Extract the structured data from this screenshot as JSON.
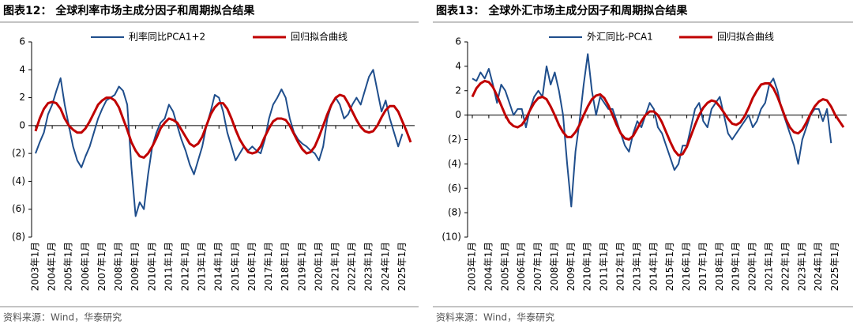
{
  "chart_data": [
    {
      "type": "line",
      "title": "图表12：  全球利率市场主成分因子和周期拟合结果",
      "source": "资料来源：Wind，华泰研究",
      "categories": [
        "2003年1月",
        null,
        null,
        null,
        "2004年1月",
        null,
        null,
        null,
        "2005年1月",
        null,
        null,
        null,
        "2006年1月",
        null,
        null,
        null,
        "2007年1月",
        null,
        null,
        null,
        "2008年1月",
        null,
        null,
        null,
        "2009年1月",
        null,
        null,
        null,
        "2010年1月",
        null,
        null,
        null,
        "2011年1月",
        null,
        null,
        null,
        "2012年1月",
        null,
        null,
        null,
        "2013年1月",
        null,
        null,
        null,
        "2014年1月",
        null,
        null,
        null,
        "2015年1月",
        null,
        null,
        null,
        "2016年1月",
        null,
        null,
        null,
        "2017年1月",
        null,
        null,
        null,
        "2018年1月",
        null,
        null,
        null,
        "2019年1月",
        null,
        null,
        null,
        "2020年1月",
        null,
        null,
        null,
        "2021年1月",
        null,
        null,
        null,
        "2022年1月",
        null,
        null,
        null,
        "2023年1月",
        null,
        null,
        null,
        "2024年1月",
        null,
        null,
        null,
        "2025年1月",
        null,
        null
      ],
      "ylim": [
        -8,
        6
      ],
      "yticks": [
        {
          "value": -8,
          "label": "(8)"
        },
        {
          "value": -6,
          "label": "(6)"
        },
        {
          "value": -4,
          "label": "(4)"
        },
        {
          "value": -2,
          "label": "(2)"
        },
        0,
        2,
        4,
        6
      ],
      "series": [
        {
          "name": "利率同比PCA1+2",
          "color": "#1f4e8c",
          "width": 2,
          "values": [
            -2,
            -1.2,
            -0.5,
            0.8,
            1.5,
            2.5,
            3.4,
            1.5,
            0,
            -1.5,
            -2.5,
            -3,
            -2.2,
            -1.5,
            -0.5,
            0.5,
            1.2,
            1.8,
            2,
            2.2,
            2.8,
            2.5,
            1.5,
            -3,
            -6.5,
            -5.5,
            -6,
            -3.5,
            -1.5,
            -0.5,
            0.2,
            0.5,
            1.5,
            1,
            0,
            -1,
            -1.8,
            -2.8,
            -3.5,
            -2.5,
            -1.5,
            0,
            1,
            2.2,
            2,
            1,
            -0.5,
            -1.5,
            -2.5,
            -2,
            -1.5,
            -1.8,
            -1.5,
            -1.8,
            -2,
            -1,
            0.5,
            1.5,
            2,
            2.6,
            2,
            0.5,
            -0.5,
            -1,
            -1.3,
            -1.5,
            -1.8,
            -2,
            -2.5,
            -1.5,
            0.5,
            1.5,
            2,
            1.5,
            0.5,
            0.8,
            1.5,
            2,
            1.5,
            2.5,
            3.5,
            4,
            2.5,
            1,
            1.8,
            0.5,
            -0.5,
            -1.5,
            -0.6,
            null,
            null
          ]
        },
        {
          "name": "回归拟合曲线",
          "color": "#c00000",
          "width": 3,
          "values": [
            -0.4,
            0.5,
            1.2,
            1.6,
            1.7,
            1.6,
            1.2,
            0.5,
            0,
            -0.3,
            -0.5,
            -0.5,
            -0.2,
            0.3,
            0.9,
            1.5,
            1.8,
            2,
            2,
            1.8,
            1.3,
            0.5,
            -0.3,
            -1.2,
            -1.8,
            -2.2,
            -2.3,
            -2,
            -1.5,
            -0.9,
            -0.2,
            0.2,
            0.5,
            0.4,
            0.2,
            -0.3,
            -0.8,
            -1.3,
            -1.5,
            -1.3,
            -0.8,
            0,
            0.8,
            1.3,
            1.6,
            1.6,
            1.2,
            0.5,
            -0.3,
            -1,
            -1.5,
            -1.9,
            -2,
            -1.9,
            -1.5,
            -0.8,
            -0.2,
            0.3,
            0.5,
            0.5,
            0.4,
            0,
            -0.6,
            -1.2,
            -1.7,
            -2,
            -1.9,
            -1.5,
            -0.8,
            0,
            0.8,
            1.5,
            2,
            2.2,
            2.1,
            1.6,
            1,
            0.4,
            -0.1,
            -0.4,
            -0.5,
            -0.4,
            0,
            0.6,
            1.1,
            1.4,
            1.4,
            1,
            0.3,
            -0.4,
            -1.2
          ]
        }
      ]
    },
    {
      "type": "line",
      "title": "图表13：  全球外汇市场主成分因子和周期拟合结果",
      "source": "资料来源：Wind，华泰研究",
      "categories": [
        "2003年1月",
        null,
        null,
        null,
        "2004年1月",
        null,
        null,
        null,
        "2005年1月",
        null,
        null,
        null,
        "2006年1月",
        null,
        null,
        null,
        "2007年1月",
        null,
        null,
        null,
        "2008年1月",
        null,
        null,
        null,
        "2009年1月",
        null,
        null,
        null,
        "2010年1月",
        null,
        null,
        null,
        "2011年1月",
        null,
        null,
        null,
        "2012年1月",
        null,
        null,
        null,
        "2013年1月",
        null,
        null,
        null,
        "2014年1月",
        null,
        null,
        null,
        "2015年1月",
        null,
        null,
        null,
        "2016年1月",
        null,
        null,
        null,
        "2017年1月",
        null,
        null,
        null,
        "2018年1月",
        null,
        null,
        null,
        "2019年1月",
        null,
        null,
        null,
        "2020年1月",
        null,
        null,
        null,
        "2021年1月",
        null,
        null,
        null,
        "2022年1月",
        null,
        null,
        null,
        "2023年1月",
        null,
        null,
        null,
        "2024年1月",
        null,
        null,
        null,
        "2025年1月",
        null,
        null
      ],
      "ylim": [
        -10,
        6
      ],
      "yticks": [
        {
          "value": -10,
          "label": "(10)"
        },
        {
          "value": -8,
          "label": "(8)"
        },
        {
          "value": -6,
          "label": "(6)"
        },
        {
          "value": -4,
          "label": "(4)"
        },
        {
          "value": -2,
          "label": "(2)"
        },
        0,
        2,
        4,
        6
      ],
      "series": [
        {
          "name": "外汇同比-PCA1",
          "color": "#1f4e8c",
          "width": 2,
          "values": [
            3,
            2.8,
            3.5,
            3,
            3.8,
            2.5,
            1,
            2.5,
            2,
            1,
            0,
            0.5,
            0.5,
            -1,
            0.5,
            1.5,
            2,
            1.5,
            4,
            2.5,
            3.5,
            2,
            0,
            -4,
            -7.5,
            -3,
            -0.5,
            2.5,
            5,
            2,
            0,
            1.5,
            1,
            0.5,
            0.5,
            -0.5,
            -1.5,
            -2.5,
            -3,
            -1.5,
            -0.5,
            -1,
            0,
            1,
            0.5,
            -1,
            -1.5,
            -2.5,
            -3.5,
            -4.5,
            -4,
            -2.5,
            -2.5,
            -1,
            0.5,
            1,
            -0.5,
            -1,
            0.5,
            1,
            1.5,
            0,
            -1.5,
            -2,
            -1.5,
            -1,
            -0.5,
            0,
            -1,
            -0.5,
            0.5,
            1,
            2.5,
            3,
            2,
            0.5,
            -0.5,
            -1.5,
            -2.5,
            -4,
            -2,
            -1,
            0,
            0.5,
            0.5,
            -0.5,
            0.5,
            -2.3,
            null,
            null,
            null
          ]
        },
        {
          "name": "回归拟合曲线",
          "color": "#c00000",
          "width": 3,
          "values": [
            1.5,
            2.2,
            2.6,
            2.8,
            2.7,
            2.3,
            1.6,
            0.8,
            0,
            -0.6,
            -0.9,
            -1,
            -0.8,
            -0.3,
            0.4,
            1,
            1.4,
            1.5,
            1.3,
            0.7,
            0,
            -0.8,
            -1.4,
            -1.8,
            -1.8,
            -1.4,
            -0.8,
            0,
            0.7,
            1.3,
            1.6,
            1.7,
            1.4,
            0.8,
            0,
            -0.8,
            -1.5,
            -1.9,
            -2,
            -1.7,
            -1.1,
            -0.5,
            0,
            0.3,
            0.3,
            0,
            -0.6,
            -1.4,
            -2.2,
            -2.9,
            -3.3,
            -3.2,
            -2.6,
            -1.7,
            -0.8,
            0,
            0.6,
            1,
            1.2,
            1.1,
            0.7,
            0.2,
            -0.3,
            -0.7,
            -0.8,
            -0.6,
            -0.1,
            0.6,
            1.4,
            2,
            2.5,
            2.6,
            2.6,
            2.2,
            1.5,
            0.6,
            -0.3,
            -1,
            -1.4,
            -1.5,
            -1.2,
            -0.6,
            0.1,
            0.7,
            1.1,
            1.3,
            1.2,
            0.7,
            0,
            -0.5,
            -1
          ]
        }
      ]
    }
  ]
}
